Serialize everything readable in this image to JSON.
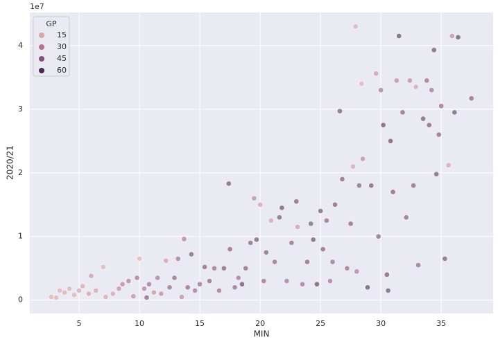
{
  "chart_data": {
    "type": "scatter",
    "xlabel": "MIN",
    "ylabel": "2020/21",
    "y_offset_text": "1e7",
    "xlim": [
      0.92,
      39.3
    ],
    "ylim": [
      -0.21,
      4.52
    ],
    "xticks": [
      5,
      10,
      15,
      20,
      25,
      30,
      35
    ],
    "yticks": [
      0,
      1,
      2,
      3,
      4
    ],
    "grid": true,
    "alpha": 0.6,
    "legend": {
      "title": "GP",
      "loc": "upper left",
      "levels": [
        15,
        30,
        45,
        60
      ],
      "colors": [
        "#dca4a0",
        "#b5738f",
        "#844d7a",
        "#4b2a54"
      ]
    },
    "x": [
      2.7,
      3.1,
      3.4,
      3.8,
      4.2,
      4.6,
      5.0,
      5.3,
      5.8,
      6.0,
      6.4,
      7.0,
      7.2,
      7.8,
      8.3,
      8.6,
      9.1,
      9.5,
      9.8,
      10.0,
      10.4,
      10.6,
      10.8,
      11.2,
      11.5,
      11.8,
      12.2,
      12.5,
      12.9,
      13.2,
      13.5,
      13.7,
      14.0,
      14.3,
      14.6,
      15.0,
      15.4,
      15.8,
      16.2,
      16.6,
      17.0,
      17.4,
      17.5,
      17.9,
      18.2,
      18.5,
      18.8,
      19.2,
      19.5,
      19.7,
      20.0,
      20.3,
      20.5,
      20.9,
      21.2,
      21.6,
      21.8,
      22.2,
      22.6,
      23.0,
      23.1,
      23.5,
      23.9,
      24.2,
      24.4,
      24.7,
      25.0,
      25.2,
      25.5,
      25.8,
      26.2,
      26.6,
      26.8,
      27.2,
      27.5,
      27.9,
      27.7,
      28.2,
      28.4,
      28.5,
      28.9,
      29.2,
      29.6,
      29.8,
      30.0,
      30.2,
      30.5,
      30.8,
      31.0,
      31.3,
      31.5,
      31.8,
      32.1,
      32.4,
      32.7,
      32.9,
      33.1,
      33.5,
      33.8,
      34.0,
      34.2,
      34.4,
      34.6,
      34.8,
      35.0,
      35.3,
      35.6,
      35.9,
      36.1,
      36.4,
      37.5,
      26.0,
      28.0,
      30.6
    ],
    "values": [
      0.05,
      0.04,
      0.15,
      0.12,
      0.18,
      0.08,
      0.15,
      0.22,
      0.1,
      0.38,
      0.15,
      0.52,
      0.05,
      0.1,
      0.18,
      0.25,
      0.3,
      0.06,
      0.35,
      0.65,
      0.18,
      0.04,
      0.25,
      0.12,
      0.35,
      0.1,
      0.62,
      0.2,
      0.35,
      0.65,
      0.05,
      0.96,
      0.2,
      0.72,
      0.15,
      0.25,
      0.52,
      0.3,
      0.5,
      0.15,
      0.5,
      1.83,
      0.8,
      0.2,
      0.35,
      0.25,
      0.5,
      0.9,
      1.6,
      0.95,
      1.5,
      0.3,
      0.75,
      1.25,
      0.6,
      1.3,
      1.45,
      0.3,
      0.9,
      1.55,
      1.15,
      0.25,
      0.6,
      1.2,
      0.95,
      0.25,
      1.4,
      0.8,
      1.25,
      0.3,
      1.5,
      2.97,
      1.9,
      0.5,
      1.2,
      4.3,
      2.1,
      1.8,
      3.4,
      2.22,
      0.2,
      1.8,
      3.56,
      1.0,
      3.3,
      2.75,
      0.4,
      2.5,
      1.7,
      3.45,
      4.15,
      2.95,
      1.3,
      3.45,
      1.8,
      3.35,
      0.55,
      2.85,
      3.45,
      2.75,
      3.3,
      3.93,
      1.98,
      2.6,
      3.05,
      0.65,
      2.12,
      4.15,
      2.95,
      4.13,
      3.17,
      0.6,
      0.45,
      0.15
    ],
    "hue": [
      10,
      12,
      15,
      14,
      16,
      12,
      20,
      18,
      22,
      24,
      20,
      8,
      18,
      20,
      28,
      32,
      36,
      30,
      40,
      10,
      34,
      50,
      42,
      26,
      38,
      30,
      22,
      44,
      46,
      40,
      30,
      36,
      48,
      52,
      40,
      44,
      50,
      48,
      44,
      42,
      52,
      56,
      50,
      46,
      40,
      60,
      48,
      50,
      30,
      54,
      22,
      44,
      50,
      20,
      46,
      52,
      56,
      40,
      48,
      54,
      24,
      40,
      50,
      52,
      56,
      60,
      54,
      50,
      48,
      40,
      54,
      56,
      52,
      44,
      50,
      5,
      20,
      50,
      14,
      30,
      60,
      54,
      24,
      50,
      40,
      58,
      56,
      58,
      52,
      30,
      60,
      50,
      48,
      30,
      52,
      20,
      46,
      56,
      44,
      52,
      40,
      58,
      56,
      50,
      46,
      54,
      20,
      30,
      56,
      60,
      50,
      44,
      36,
      56
    ]
  }
}
